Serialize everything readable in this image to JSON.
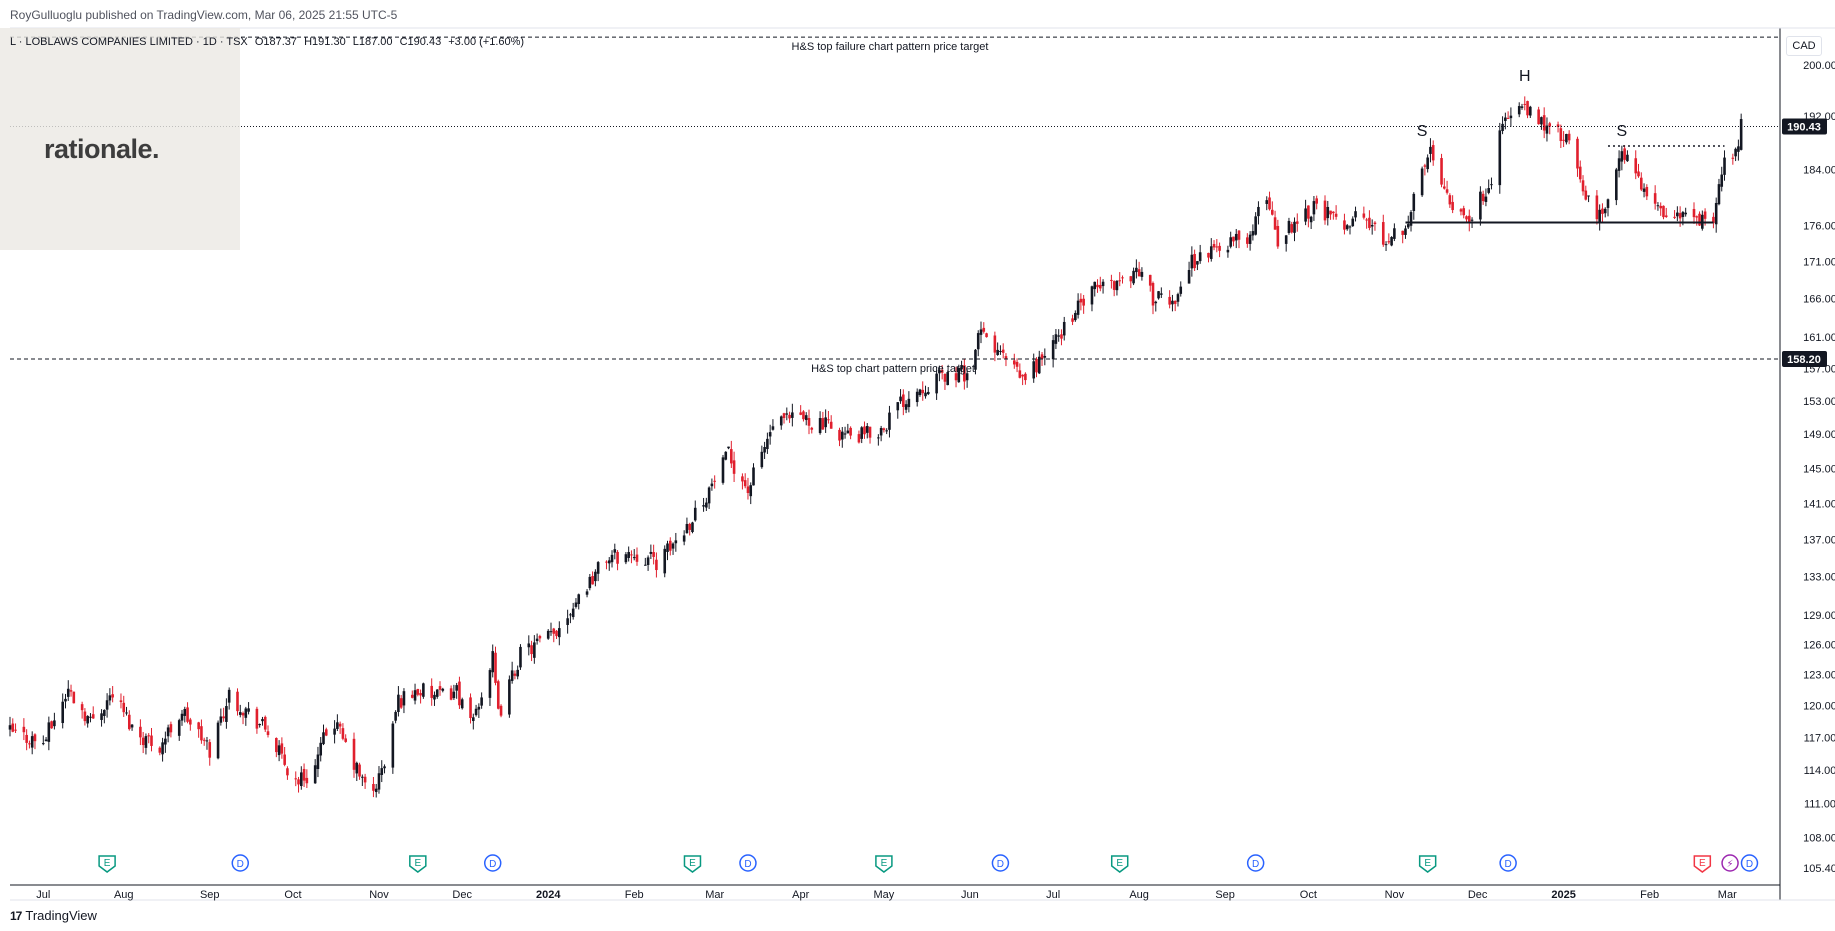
{
  "header": {
    "publisher": "RoyGulluoglu published on TradingView.com, Mar 06, 2025 21:55 UTC-5",
    "symbol": "L · LOBLAWS COMPANIES LIMITED · 1D · TSX",
    "open": "O187.37",
    "high": "H191.30",
    "low": "L187.00",
    "close": "C190.43",
    "change": "+3.00 (+1.60%)"
  },
  "logo": {
    "text": "rationale."
  },
  "footer": {
    "brand": "TradingView",
    "brand_mark": "17"
  },
  "currency": "CAD",
  "colors": {
    "up": "#131722",
    "down": "#e01f2d",
    "grid": "#f0f3fa",
    "axis": "#131722",
    "event_blue": "#2962ff",
    "event_green": "#089981",
    "event_red": "#f23645",
    "event_purple": "#9c27b0"
  },
  "chart_data": {
    "type": "candlestick",
    "symbol": "L",
    "interval": "1D",
    "currency": "CAD",
    "y_scale": "log",
    "ylim": [
      104.0,
      206.0
    ],
    "x_range": [
      "2023-06-21",
      "2025-03-20"
    ],
    "y_ticks": [
      "105.40",
      "108.00",
      "111.00",
      "114.00",
      "117.00",
      "120.00",
      "123.00",
      "126.00",
      "129.00",
      "133.00",
      "137.00",
      "141.00",
      "145.00",
      "149.00",
      "153.00",
      "157.00",
      "161.00",
      "166.00",
      "171.00",
      "176.00",
      "184.00",
      "192.00",
      "200.00"
    ],
    "y_tick_values": [
      105.4,
      108,
      111,
      114,
      117,
      120,
      123,
      126,
      129,
      133,
      137,
      141,
      145,
      149,
      153,
      157,
      161,
      166,
      171,
      176,
      184,
      192,
      200
    ],
    "x_ticks": [
      {
        "label": "Jul",
        "date": "2023-07-03"
      },
      {
        "label": "Aug",
        "date": "2023-08-01"
      },
      {
        "label": "Sep",
        "date": "2023-09-01"
      },
      {
        "label": "Oct",
        "date": "2023-10-01"
      },
      {
        "label": "Nov",
        "date": "2023-11-01"
      },
      {
        "label": "Dec",
        "date": "2023-12-01"
      },
      {
        "label": "2024",
        "date": "2024-01-01"
      },
      {
        "label": "Feb",
        "date": "2024-02-01"
      },
      {
        "label": "Mar",
        "date": "2024-03-01"
      },
      {
        "label": "Apr",
        "date": "2024-04-01"
      },
      {
        "label": "May",
        "date": "2024-05-01"
      },
      {
        "label": "Jun",
        "date": "2024-06-01"
      },
      {
        "label": "Jul",
        "date": "2024-07-01"
      },
      {
        "label": "Aug",
        "date": "2024-08-01"
      },
      {
        "label": "Sep",
        "date": "2024-09-01"
      },
      {
        "label": "Oct",
        "date": "2024-10-01"
      },
      {
        "label": "Nov",
        "date": "2024-11-01"
      },
      {
        "label": "Dec",
        "date": "2024-12-01"
      },
      {
        "label": "2025",
        "date": "2025-01-01"
      },
      {
        "label": "Feb",
        "date": "2025-02-01"
      },
      {
        "label": "Mar",
        "date": "2025-03-01"
      }
    ],
    "close_path": [
      {
        "date": "2023-06-21",
        "close": 117.5
      },
      {
        "date": "2023-07-03",
        "close": 116.5
      },
      {
        "date": "2023-07-12",
        "close": 121.5
      },
      {
        "date": "2023-07-20",
        "close": 118.5
      },
      {
        "date": "2023-07-28",
        "close": 121.2
      },
      {
        "date": "2023-08-05",
        "close": 117.5
      },
      {
        "date": "2023-08-14",
        "close": 116.2
      },
      {
        "date": "2023-08-22",
        "close": 119.5
      },
      {
        "date": "2023-09-01",
        "close": 115.8
      },
      {
        "date": "2023-09-08",
        "close": 121.0
      },
      {
        "date": "2023-09-15",
        "close": 119.3
      },
      {
        "date": "2023-09-22",
        "close": 117.5
      },
      {
        "date": "2023-10-01",
        "close": 113.0
      },
      {
        "date": "2023-10-08",
        "close": 113.6
      },
      {
        "date": "2023-10-15",
        "close": 119.0
      },
      {
        "date": "2023-10-22",
        "close": 115.0
      },
      {
        "date": "2023-10-29",
        "close": 111.5
      },
      {
        "date": "2023-11-03",
        "close": 114.5
      },
      {
        "date": "2023-11-08",
        "close": 120.5
      },
      {
        "date": "2023-11-15",
        "close": 121.5
      },
      {
        "date": "2023-11-22",
        "close": 120.8
      },
      {
        "date": "2023-11-29",
        "close": 121.5
      },
      {
        "date": "2023-12-04",
        "close": 118.0
      },
      {
        "date": "2023-12-12",
        "close": 124.5
      },
      {
        "date": "2023-12-14",
        "close": 119.0
      },
      {
        "date": "2023-12-22",
        "close": 125.0
      },
      {
        "date": "2024-01-03",
        "close": 127.0
      },
      {
        "date": "2024-01-12",
        "close": 131.0
      },
      {
        "date": "2024-01-22",
        "close": 135.0
      },
      {
        "date": "2024-02-01",
        "close": 135.5
      },
      {
        "date": "2024-02-10",
        "close": 134.5
      },
      {
        "date": "2024-02-20",
        "close": 138.5
      },
      {
        "date": "2024-02-28",
        "close": 142.5
      },
      {
        "date": "2024-03-06",
        "close": 146.5
      },
      {
        "date": "2024-03-13",
        "close": 142.5
      },
      {
        "date": "2024-03-22",
        "close": 150.0
      },
      {
        "date": "2024-04-01",
        "close": 151.0
      },
      {
        "date": "2024-04-10",
        "close": 150.0
      },
      {
        "date": "2024-04-20",
        "close": 148.5
      },
      {
        "date": "2024-04-30",
        "close": 149.5
      },
      {
        "date": "2024-05-06",
        "close": 152.5
      },
      {
        "date": "2024-05-13",
        "close": 154.5
      },
      {
        "date": "2024-05-22",
        "close": 156.0
      },
      {
        "date": "2024-05-31",
        "close": 156.5
      },
      {
        "date": "2024-06-05",
        "close": 161.5
      },
      {
        "date": "2024-06-14",
        "close": 158.0
      },
      {
        "date": "2024-06-20",
        "close": 155.5
      },
      {
        "date": "2024-07-01",
        "close": 160.0
      },
      {
        "date": "2024-07-08",
        "close": 164.0
      },
      {
        "date": "2024-07-17",
        "close": 167.5
      },
      {
        "date": "2024-07-26",
        "close": 168.5
      },
      {
        "date": "2024-08-01",
        "close": 170.0
      },
      {
        "date": "2024-08-06",
        "close": 166.0
      },
      {
        "date": "2024-08-13",
        "close": 165.5
      },
      {
        "date": "2024-08-20",
        "close": 171.0
      },
      {
        "date": "2024-09-01",
        "close": 173.5
      },
      {
        "date": "2024-09-10",
        "close": 174.5
      },
      {
        "date": "2024-09-16",
        "close": 180.5
      },
      {
        "date": "2024-09-20",
        "close": 174.0
      },
      {
        "date": "2024-09-27",
        "close": 177.0
      },
      {
        "date": "2024-10-04",
        "close": 179.0
      },
      {
        "date": "2024-10-12",
        "close": 176.0
      },
      {
        "date": "2024-10-20",
        "close": 177.5
      },
      {
        "date": "2024-10-28",
        "close": 174.0
      },
      {
        "date": "2024-11-05",
        "close": 176.0
      },
      {
        "date": "2024-11-14",
        "close": 187.0
      },
      {
        "date": "2024-11-22",
        "close": 179.0
      },
      {
        "date": "2024-11-29",
        "close": 177.0
      },
      {
        "date": "2024-12-06",
        "close": 183.0
      },
      {
        "date": "2024-12-10",
        "close": 191.0
      },
      {
        "date": "2024-12-16",
        "close": 193.5
      },
      {
        "date": "2024-12-22",
        "close": 191.5
      },
      {
        "date": "2025-01-02",
        "close": 188.5
      },
      {
        "date": "2025-01-09",
        "close": 180.0
      },
      {
        "date": "2025-01-14",
        "close": 177.0
      },
      {
        "date": "2025-01-22",
        "close": 186.0
      },
      {
        "date": "2025-01-27",
        "close": 184.0
      },
      {
        "date": "2025-02-03",
        "close": 178.0
      },
      {
        "date": "2025-02-12",
        "close": 177.5
      },
      {
        "date": "2025-02-20",
        "close": 176.5
      },
      {
        "date": "2025-02-24",
        "close": 175.5
      },
      {
        "date": "2025-02-28",
        "close": 187.0
      },
      {
        "date": "2025-03-04",
        "close": 186.0
      },
      {
        "date": "2025-03-06",
        "close": 190.43
      }
    ],
    "annotations": {
      "hs_failure_target": {
        "price": 204.5,
        "label": "H&S top failure chart pattern price target"
      },
      "hs_target": {
        "price": 158.2,
        "label": "H&S top chart pattern price target"
      },
      "last_price": {
        "price": 190.43,
        "label": "190.43"
      },
      "hs_target_tag": "158.20",
      "neckline": {
        "price": 176.4,
        "from": "2024-11-05",
        "to": "2025-02-24"
      },
      "breakout_level": {
        "price": 187.5,
        "from": "2025-01-17",
        "to": "2025-02-28"
      },
      "labels": [
        {
          "text": "S",
          "date": "2024-11-11",
          "price": 189.0
        },
        {
          "text": "H",
          "date": "2024-12-18",
          "price": 197.5
        },
        {
          "text": "S",
          "date": "2025-01-22",
          "price": 189.0
        }
      ]
    },
    "events": [
      {
        "type": "E",
        "date": "2023-07-26"
      },
      {
        "type": "D",
        "date": "2023-09-12"
      },
      {
        "type": "E",
        "date": "2023-11-15"
      },
      {
        "type": "D",
        "date": "2023-12-12"
      },
      {
        "type": "E",
        "date": "2024-02-22"
      },
      {
        "type": "D",
        "date": "2024-03-13"
      },
      {
        "type": "E",
        "date": "2024-05-01"
      },
      {
        "type": "D",
        "date": "2024-06-12"
      },
      {
        "type": "E",
        "date": "2024-07-25"
      },
      {
        "type": "D",
        "date": "2024-09-12"
      },
      {
        "type": "E",
        "date": "2024-11-13"
      },
      {
        "type": "D",
        "date": "2024-12-12"
      },
      {
        "type": "E",
        "date": "2025-02-20"
      },
      {
        "type": "S",
        "date": "2025-03-02"
      },
      {
        "type": "D",
        "date": "2025-03-09"
      }
    ]
  }
}
